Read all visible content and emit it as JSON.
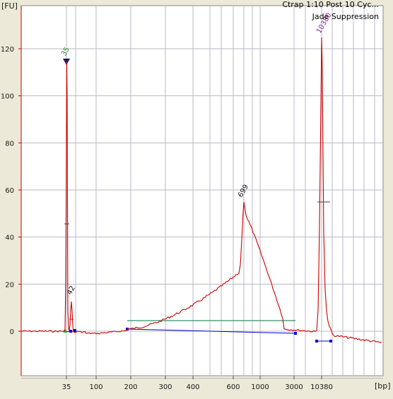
{
  "window": {
    "title_line1": "Ctrap 1:10 Post 10 Cyc...",
    "title_line2": "Jade Suppression"
  },
  "chart_data": {
    "type": "line",
    "ylabel": "[FU]",
    "xlabel": "[bp]",
    "ylim": [
      -20,
      138
    ],
    "yticks": [
      0,
      20,
      40,
      60,
      80,
      100,
      120
    ],
    "xticks": [
      "35",
      "100",
      "200",
      "300",
      "400",
      "600",
      "1000",
      "3000",
      "10380"
    ],
    "grid": true,
    "colors": {
      "trace": "#cc0000",
      "baseline": "#0000cc",
      "region": "#007744",
      "marker": "#1a1a5e",
      "peak_label_35": "#2a8a2a",
      "peak_label_10380": "#8a2aa0",
      "grid": "#b8b8c8",
      "plot_bg": "#ffffff"
    },
    "peaks": [
      {
        "label": "35",
        "size_bp": 35,
        "fu": 113
      },
      {
        "label": "42",
        "size_bp": 42,
        "fu": 12.5
      },
      {
        "label": "699",
        "size_bp": 699,
        "fu": 55
      },
      {
        "label": "10380",
        "size_bp": 10380,
        "fu": 125
      }
    ],
    "smear_region": {
      "from_bp": 200,
      "to_bp": 3000,
      "fu": 4.5
    }
  }
}
